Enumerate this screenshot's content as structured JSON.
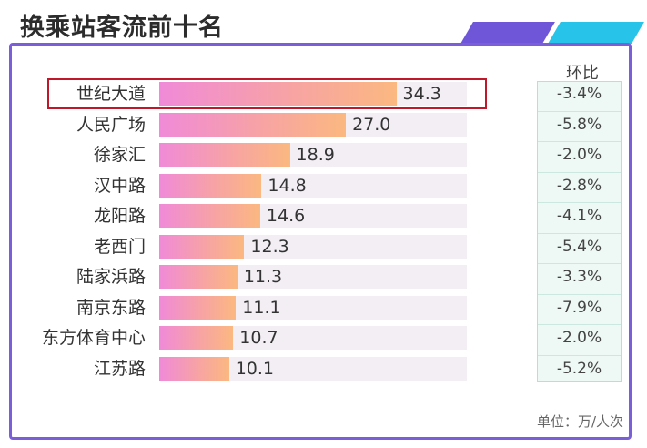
{
  "title": "换乘站客流前十名",
  "ratio_header": "环比",
  "unit": "单位：万/人次",
  "chart_data": {
    "type": "bar",
    "orientation": "horizontal",
    "title": "换乘站客流前十名",
    "categories": [
      "世纪大道",
      "人民广场",
      "徐家汇",
      "汉中路",
      "龙阳路",
      "老西门",
      "陆家浜路",
      "南京东路",
      "东方体育中心",
      "江苏路"
    ],
    "values": [
      34.3,
      27.0,
      18.9,
      14.8,
      14.6,
      12.3,
      11.3,
      11.1,
      10.7,
      10.1
    ],
    "value_labels": [
      "34.3",
      "27.0",
      "18.9",
      "14.8",
      "14.6",
      "12.3",
      "11.3",
      "11.1",
      "10.7",
      "10.1"
    ],
    "ratios": [
      "-3.4%",
      "-5.8%",
      "-2.0%",
      "-2.8%",
      "-4.1%",
      "-5.4%",
      "-3.3%",
      "-7.9%",
      "-2.0%",
      "-5.2%"
    ],
    "highlighted_category": "世纪大道",
    "xlim": [
      0,
      44.5
    ],
    "colors": {
      "bar_start": "#f08ad8",
      "bar_end": "#fbb880",
      "highlight_border": "#c0182a",
      "frame": "#7a5fd8"
    }
  }
}
